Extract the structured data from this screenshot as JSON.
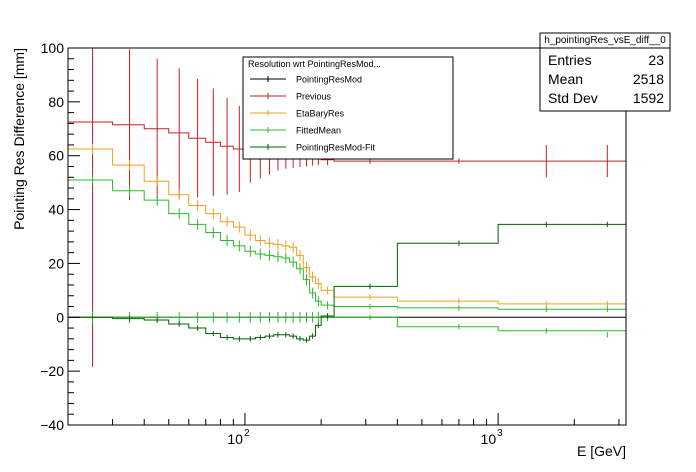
{
  "chart_data": {
    "type": "line",
    "xscale": "log",
    "xlim": [
      20,
      3200
    ],
    "ylim": [
      -40,
      100
    ],
    "xlabel": "E [GeV]",
    "ylabel": "Pointing Res Difference [mm]",
    "y_ticks": [
      "−40",
      "−20",
      "0",
      "20",
      "40",
      "60",
      "80",
      "100"
    ],
    "y_tick_values": [
      -40,
      -20,
      0,
      20,
      40,
      60,
      80,
      100
    ],
    "x_ticks": [
      {
        "base": "10",
        "exp": "2",
        "value": 100
      },
      {
        "base": "10",
        "exp": "3",
        "value": 1000
      }
    ],
    "grid": false,
    "legend": {
      "title": "Resolution wrt PointingResMod...",
      "placement": "top-center",
      "entries": [
        {
          "name": "PointingResMod",
          "color": "#000000"
        },
        {
          "name": "Previous",
          "color": "#cc1f1f"
        },
        {
          "name": "EtaBaryRes",
          "color": "#f0a020"
        },
        {
          "name": "FittedMean",
          "color": "#2db82d"
        },
        {
          "name": "PointingResMod-Fit",
          "color": "#006400"
        }
      ]
    },
    "stats": {
      "name": "h_pointingRes_vsE_diff__0",
      "rows": [
        {
          "label": "Entries",
          "value": "23"
        },
        {
          "label": "Mean",
          "value": "2518"
        },
        {
          "label": "Std Dev",
          "value": "1592"
        }
      ]
    },
    "x_edges": [
      20,
      30,
      40,
      50,
      60,
      70,
      80,
      90,
      100,
      110,
      120,
      130,
      140,
      150,
      160,
      170,
      180,
      190,
      200,
      225,
      400,
      1000,
      3200
    ],
    "x_centers": [
      25,
      35,
      45,
      55,
      65,
      75,
      85,
      95,
      105,
      115,
      125,
      135,
      145,
      155,
      165,
      175,
      185,
      195,
      212,
      312,
      700,
      1550,
      2700
    ],
    "series": [
      {
        "name": "Previous",
        "color": "#cc1f1f",
        "values": [
          72.5,
          71.5,
          70.0,
          68.5,
          66.5,
          65.0,
          63.5,
          62.5,
          62.0,
          61.5,
          61.0,
          60.5,
          60.2,
          60.0,
          59.8,
          59.5,
          59.3,
          59.0,
          58.5,
          58.0,
          58.0,
          58.0,
          58.0
        ],
        "errors": [
          91,
          28,
          26,
          24,
          22,
          20,
          18,
          16,
          12,
          10,
          8,
          6,
          5,
          4.5,
          4,
          3.5,
          3,
          2.5,
          2,
          1,
          1,
          6,
          6
        ]
      },
      {
        "name": "EtaBaryRes",
        "color": "#f0a020",
        "values": [
          62.5,
          56.5,
          50.5,
          45.5,
          41.5,
          38.5,
          35.5,
          33.5,
          30.5,
          28.5,
          27.5,
          27.0,
          26.5,
          26.0,
          23.0,
          18.5,
          15.0,
          12.5,
          10.0,
          7.5,
          6.0,
          5.0,
          5.0
        ],
        "errors": [
          2,
          2,
          2,
          2,
          2,
          2,
          2,
          2,
          2,
          2,
          2,
          2,
          2,
          2,
          2,
          2,
          2,
          2,
          1.5,
          1,
          1,
          1,
          1
        ]
      },
      {
        "name": "FittedMean",
        "color": "#2db82d",
        "values": [
          51.0,
          47.0,
          43.5,
          38.5,
          34.5,
          31.5,
          28.5,
          26.5,
          24.5,
          23.5,
          23.0,
          22.5,
          22.0,
          20.5,
          18.0,
          14.0,
          9.0,
          6.0,
          4.5,
          4.0,
          3.5,
          3.0,
          3.0
        ],
        "errors": [
          2,
          2,
          2,
          2,
          2,
          2,
          2,
          2,
          2,
          2,
          2,
          2,
          2,
          2,
          2,
          2,
          2,
          2,
          1.5,
          1,
          1,
          1,
          1
        ]
      },
      {
        "name": "PointingResMod",
        "color": "#000000",
        "values": [
          0,
          0,
          0,
          0,
          0,
          0,
          0,
          0,
          0,
          0,
          0,
          0,
          0,
          0,
          0,
          0,
          0,
          0,
          0,
          0,
          0,
          0,
          0
        ],
        "errors": [
          0,
          0,
          0,
          0,
          0,
          0,
          0,
          0,
          0,
          0,
          0,
          0,
          0,
          0,
          0,
          0,
          0,
          0,
          0,
          0,
          0,
          0,
          0
        ]
      },
      {
        "name": "PointingResMod-Fit",
        "color": "#006400",
        "values": [
          0,
          -0.5,
          -1.0,
          -2.5,
          -4.0,
          -6.0,
          -7.5,
          -8.0,
          -8.0,
          -7.5,
          -7.0,
          -6.5,
          -6.5,
          -7.0,
          -8.0,
          -8.5,
          -7.0,
          -3.0,
          0.5,
          11.5,
          27.5,
          34.5,
          34.5
        ],
        "errors": [
          0.5,
          1,
          1,
          1,
          1,
          1,
          1,
          1,
          1,
          1,
          1,
          1,
          1,
          1,
          1,
          1,
          1,
          1,
          1,
          1,
          1,
          1,
          1
        ]
      }
    ],
    "series_lower_green": [
      0,
      0,
      0,
      0,
      0,
      0,
      0,
      0,
      0,
      0,
      0,
      0,
      0,
      0,
      0,
      0,
      0,
      0,
      0,
      0,
      -3.5,
      -5.0,
      -6.5
    ]
  }
}
